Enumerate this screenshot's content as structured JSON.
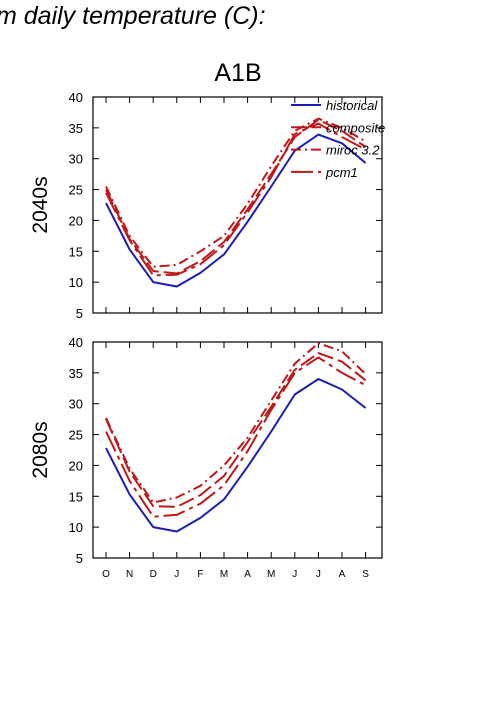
{
  "page": {
    "title": "m daily temperature (C):"
  },
  "chart_data": {
    "type": "line",
    "title": "A1B",
    "categories": [
      "O",
      "N",
      "D",
      "J",
      "F",
      "M",
      "A",
      "M",
      "J",
      "J",
      "A",
      "S"
    ],
    "ylim": [
      5,
      40
    ],
    "yticks": [
      5,
      10,
      15,
      20,
      25,
      30,
      35,
      40
    ],
    "legend": {
      "position": "top-right",
      "entries": [
        "historical",
        "composite",
        "miroc 3.2",
        "pcm1"
      ]
    },
    "colors": {
      "historical": "#1c1cb8",
      "models": "#c01818"
    },
    "panels": [
      {
        "label": "2040s",
        "series": [
          {
            "name": "historical",
            "values": [
              22.8,
              15.3,
              10.0,
              9.3,
              11.5,
              14.5,
              19.8,
              25.5,
              31.3,
              33.9,
              32.5,
              29.3
            ]
          },
          {
            "name": "composite",
            "values": [
              25.0,
              17.0,
              11.8,
              11.4,
              13.4,
              16.5,
              21.8,
              27.5,
              33.5,
              36.3,
              34.5,
              31.9
            ]
          },
          {
            "name": "miroc 3.2",
            "values": [
              25.5,
              17.5,
              12.5,
              12.8,
              15.0,
              17.5,
              22.7,
              28.8,
              34.5,
              36.5,
              35.0,
              32.8
            ]
          },
          {
            "name": "pcm1",
            "values": [
              24.5,
              16.8,
              11.1,
              11.2,
              12.9,
              16.0,
              21.3,
              27.0,
              34.0,
              35.7,
              33.5,
              31.5
            ]
          }
        ]
      },
      {
        "label": "2080s",
        "series": [
          {
            "name": "historical",
            "values": [
              22.8,
              15.3,
              10.0,
              9.3,
              11.5,
              14.5,
              19.8,
              25.5,
              31.5,
              34.0,
              32.3,
              29.3
            ]
          },
          {
            "name": "composite",
            "values": [
              27.5,
              19.0,
              13.4,
              13.3,
              15.2,
              18.3,
              23.8,
              29.5,
              35.5,
              38.2,
              36.8,
              33.8
            ]
          },
          {
            "name": "miroc 3.2",
            "values": [
              27.7,
              19.5,
              14.0,
              14.8,
              16.7,
              20.0,
              24.5,
              30.5,
              36.5,
              39.8,
              38.5,
              34.8
            ]
          },
          {
            "name": "pcm1",
            "values": [
              25.5,
              17.5,
              11.7,
              12.0,
              13.8,
              16.8,
              22.3,
              29.0,
              35.0,
              37.5,
              35.0,
              33.0
            ]
          }
        ]
      }
    ]
  }
}
